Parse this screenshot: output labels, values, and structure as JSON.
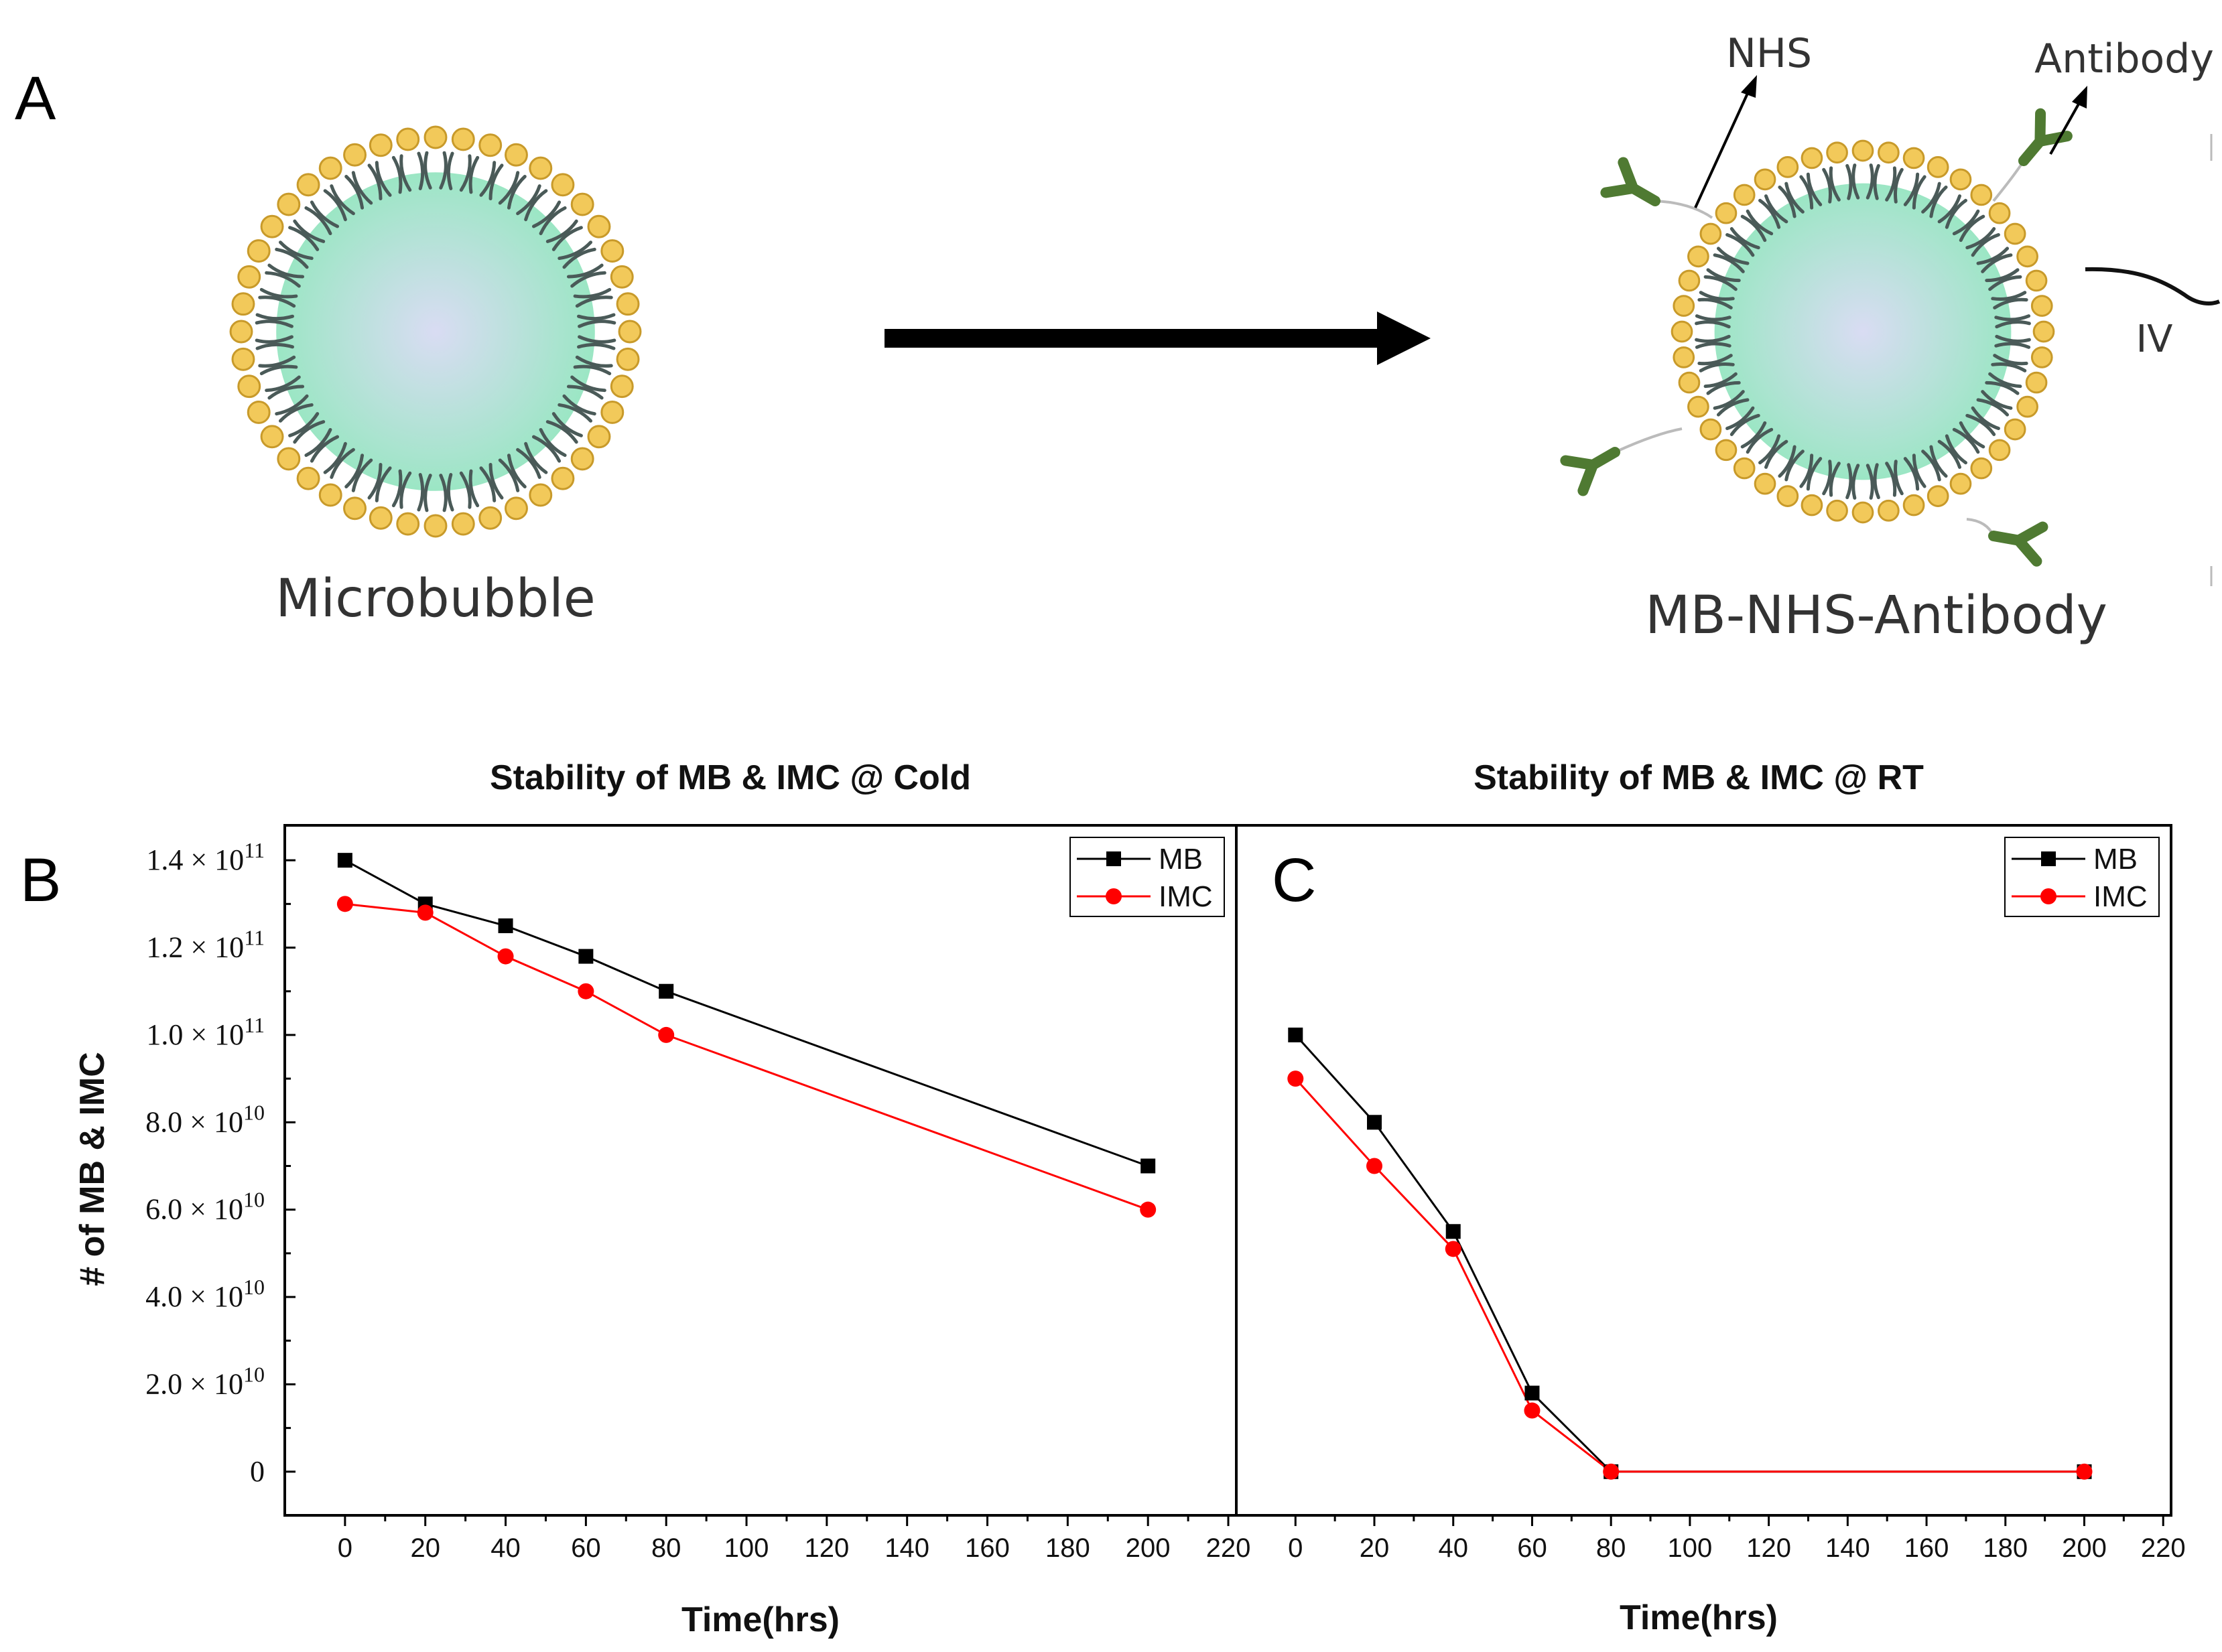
{
  "diagram": {
    "panel_label": "A",
    "left_label": "Microbubble",
    "right_label": "MB-NHS-Antibody",
    "nhs_label": "NHS",
    "antibody_label": "Antibody",
    "iv_label": "IV",
    "colors": {
      "head": "#f2c95a",
      "head_stroke": "#c89a2a",
      "tail": "#4a5a58",
      "core_outer": "#9be6c4",
      "core_inner": "#d9dcf3",
      "antibody": "#4f7a32",
      "arrow": "#000000"
    }
  },
  "chart_data": [
    {
      "panel_label": "B",
      "type": "line",
      "title": "Stability of MB & IMC @ Cold",
      "xlabel": "Time(hrs)",
      "ylabel": "# of MB & IMC",
      "xlim": [
        -15,
        222
      ],
      "ylim": [
        -10000000000.0,
        148000000000.0
      ],
      "xticks": [
        0,
        20,
        40,
        60,
        80,
        100,
        120,
        140,
        160,
        180,
        200,
        220
      ],
      "xtick_labels": [
        "0",
        "20",
        "40",
        "60",
        "80",
        "100",
        "120",
        "140",
        "160",
        "180",
        "200",
        "220"
      ],
      "yticks": [
        0,
        20000000000.0,
        40000000000.0,
        60000000000.0,
        80000000000.0,
        100000000000.0,
        120000000000.0,
        140000000000.0
      ],
      "ytick_labels": [
        {
          "mantissa": "0",
          "exp": ""
        },
        {
          "mantissa": "2.0 × 10",
          "exp": "10"
        },
        {
          "mantissa": "4.0 × 10",
          "exp": "10"
        },
        {
          "mantissa": "6.0 × 10",
          "exp": "10"
        },
        {
          "mantissa": "8.0 × 10",
          "exp": "10"
        },
        {
          "mantissa": "1.0 × 10",
          "exp": "11"
        },
        {
          "mantissa": "1.2 × 10",
          "exp": "11"
        },
        {
          "mantissa": "1.4 × 10",
          "exp": "11"
        }
      ],
      "legend_position": "top-right",
      "series": [
        {
          "name": "MB",
          "color": "#000000",
          "marker": "square",
          "x": [
            0,
            20,
            40,
            60,
            80,
            200
          ],
          "y": [
            140000000000.0,
            130000000000.0,
            125000000000.0,
            118000000000.0,
            110000000000.0,
            70000000000.0
          ]
        },
        {
          "name": "IMC",
          "color": "#ff0000",
          "marker": "circle",
          "x": [
            0,
            20,
            40,
            60,
            80,
            200
          ],
          "y": [
            130000000000.0,
            128000000000.0,
            118000000000.0,
            110000000000.0,
            100000000000.0,
            60000000000.0
          ]
        }
      ]
    },
    {
      "panel_label": "C",
      "type": "line",
      "title": "Stability of MB & IMC @ RT",
      "xlabel": "Time(hrs)",
      "ylabel": "",
      "xlim": [
        -15,
        222
      ],
      "ylim": [
        -10000000000.0,
        148000000000.0
      ],
      "xticks": [
        0,
        20,
        40,
        60,
        80,
        100,
        120,
        140,
        160,
        180,
        200,
        220
      ],
      "xtick_labels": [
        "0",
        "20",
        "40",
        "60",
        "80",
        "100",
        "120",
        "140",
        "160",
        "180",
        "200",
        "220"
      ],
      "legend_position": "top-right",
      "series": [
        {
          "name": "MB",
          "color": "#000000",
          "marker": "square",
          "x": [
            0,
            20,
            40,
            60,
            80,
            200
          ],
          "y": [
            100000000000.0,
            80000000000.0,
            55000000000.0,
            18000000000.0,
            0,
            0
          ]
        },
        {
          "name": "IMC",
          "color": "#ff0000",
          "marker": "circle",
          "x": [
            0,
            20,
            40,
            60,
            80,
            200
          ],
          "y": [
            90000000000.0,
            70000000000.0,
            51000000000.0,
            14000000000.0,
            0,
            0
          ]
        }
      ]
    }
  ]
}
